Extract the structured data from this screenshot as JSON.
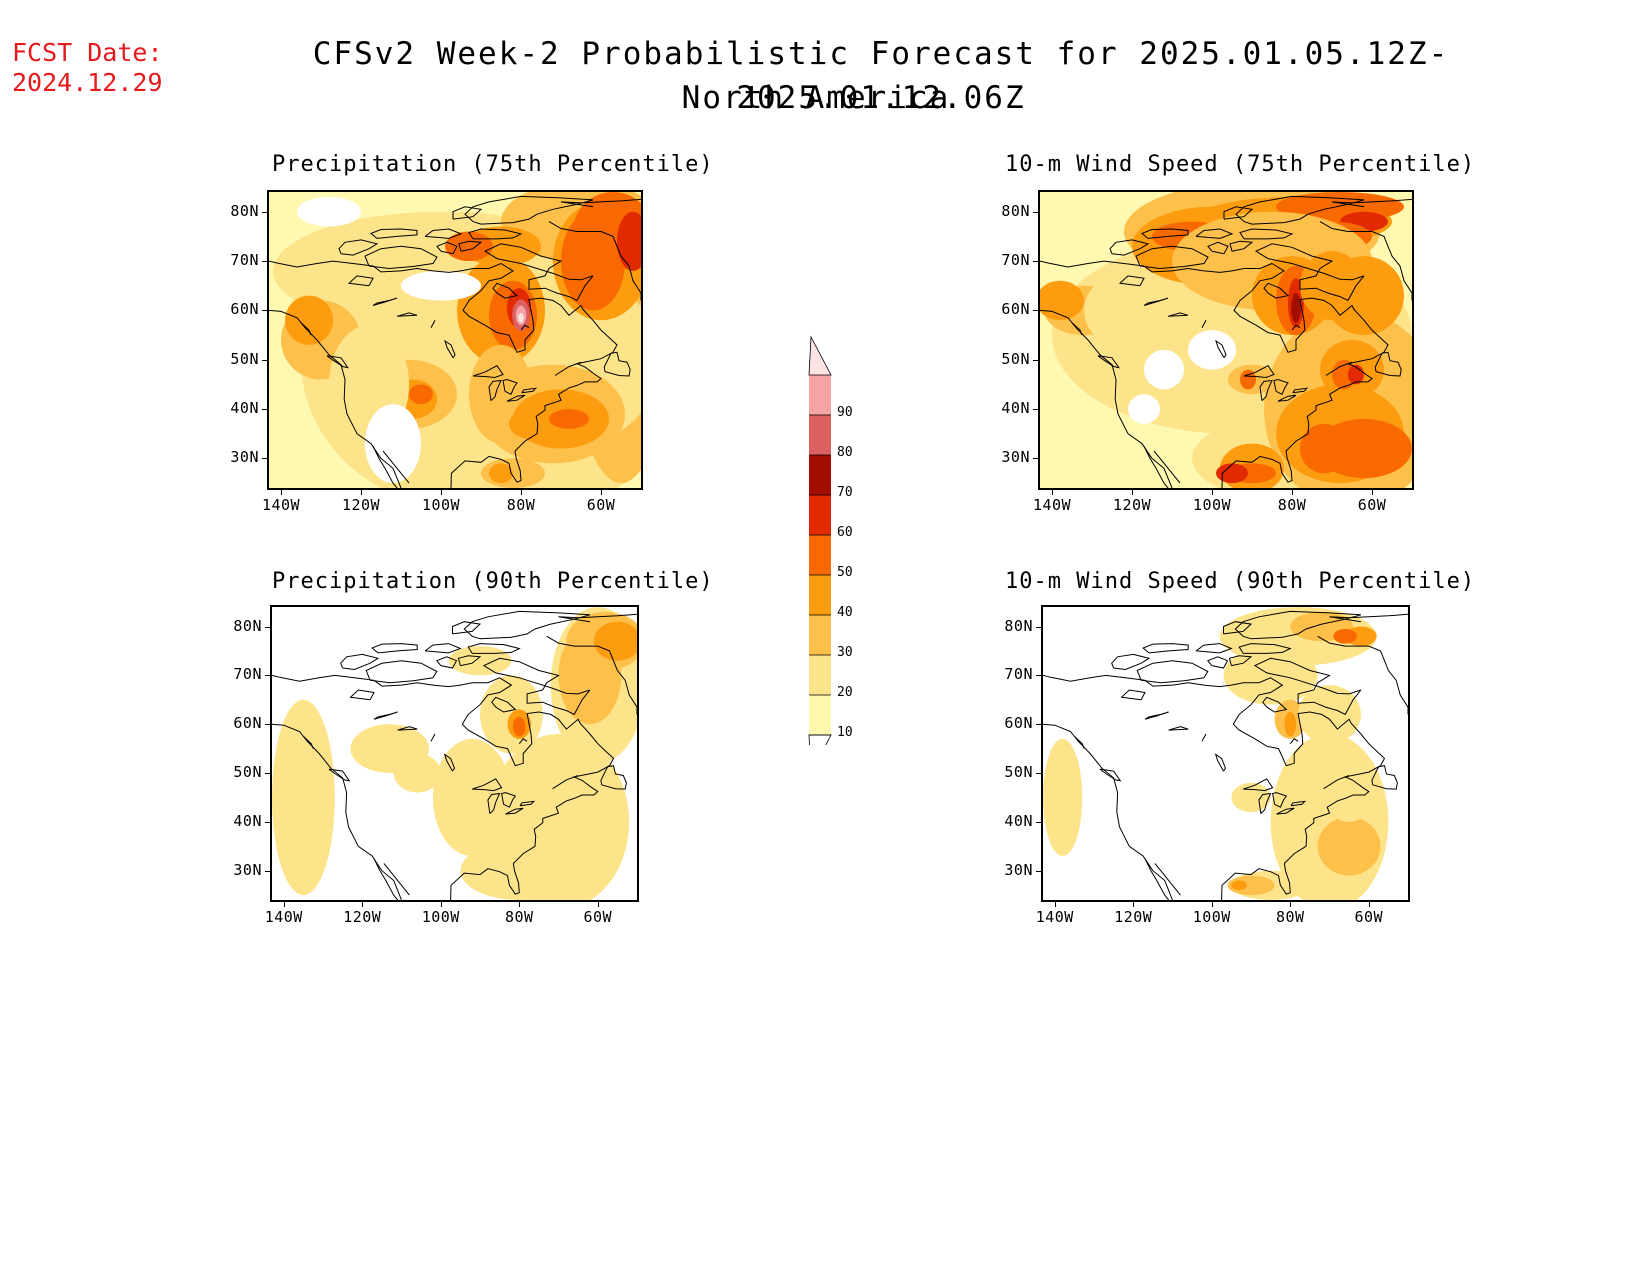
{
  "header": {
    "fcst_label": "FCST Date:",
    "fcst_date": "2024.12.29",
    "title": "CFSv2 Week-2 Probabilistic Forecast for 2025.01.05.12Z-2025.01.12.06Z",
    "subtitle": "North America"
  },
  "panels": [
    {
      "id": "p75",
      "title": "Precipitation (75th Percentile)"
    },
    {
      "id": "w75",
      "title": "10-m Wind Speed (75th Percentile)"
    },
    {
      "id": "p90",
      "title": "Precipitation (90th Percentile)"
    },
    {
      "id": "w90",
      "title": "10-m Wind Speed (90th Percentile)"
    }
  ],
  "axes": {
    "lat_labels": [
      "80N",
      "70N",
      "60N",
      "50N",
      "40N",
      "30N"
    ],
    "lon_labels": [
      "140W",
      "120W",
      "100W",
      "80W",
      "60W"
    ]
  },
  "colorbar": {
    "levels": [
      "10",
      "20",
      "30",
      "40",
      "50",
      "60",
      "70",
      "80",
      "90"
    ],
    "colors": [
      "#fff8b0",
      "#fde48a",
      "#fdc04a",
      "#fd9c0e",
      "#f86a00",
      "#e22a00",
      "#a40e00",
      "#dc6060",
      "#f4a4a4",
      "#fde4e4"
    ]
  }
}
